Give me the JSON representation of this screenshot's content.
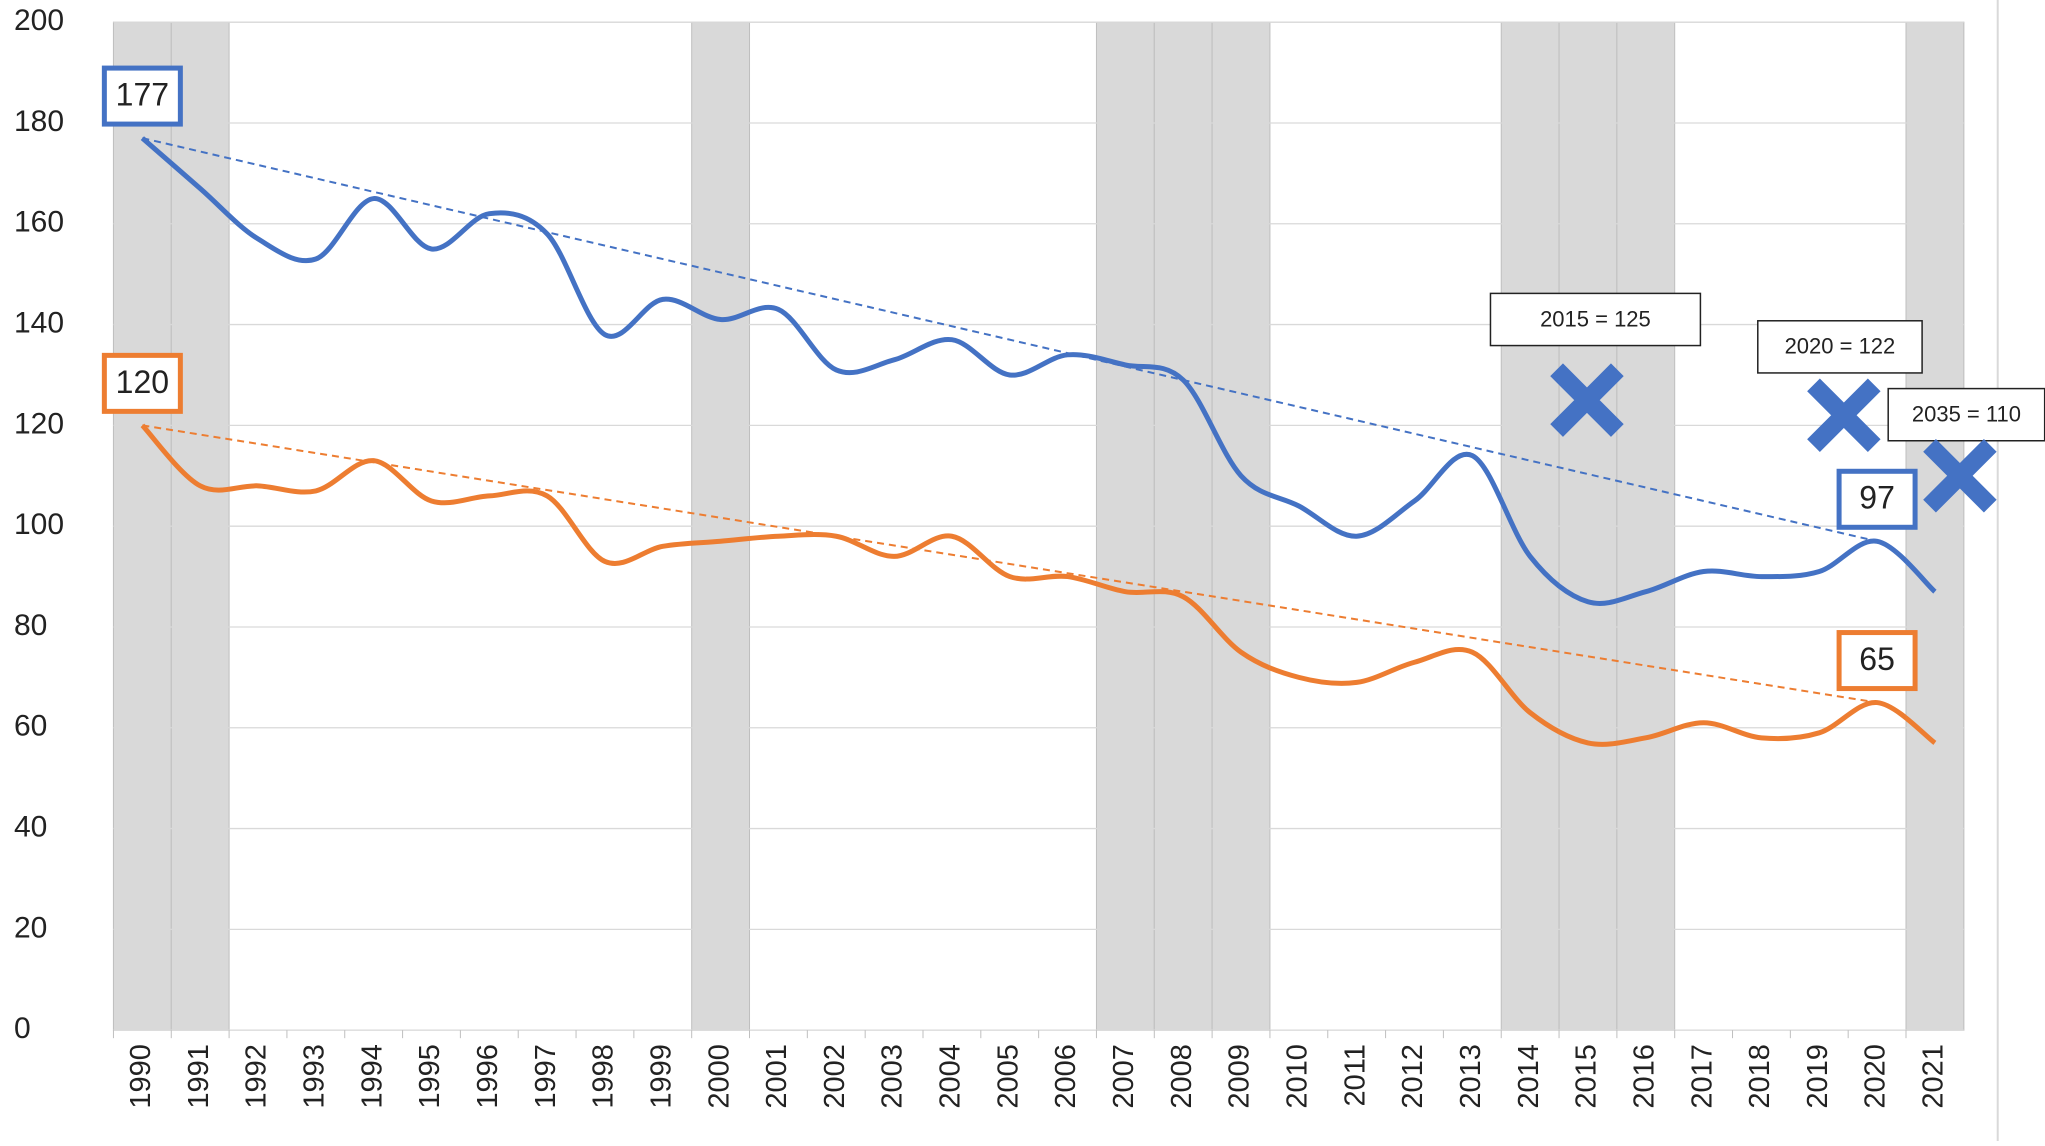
{
  "chart_data": {
    "type": "line",
    "categories": [
      "1990",
      "1991",
      "1992",
      "1993",
      "1994",
      "1995",
      "1996",
      "1997",
      "1998",
      "1999",
      "2000",
      "2001",
      "2002",
      "2003",
      "2004",
      "2005",
      "2006",
      "2007",
      "2008",
      "2009",
      "2010",
      "2011",
      "2012",
      "2013",
      "2014",
      "2015",
      "2016",
      "2017",
      "2018",
      "2019",
      "2020",
      "2021"
    ],
    "series": [
      {
        "color": "#4472c4",
        "values": [
          177,
          167,
          157,
          153,
          165,
          155,
          162,
          158,
          138,
          145,
          141,
          143,
          131,
          133,
          137,
          130,
          134,
          132,
          129,
          110,
          104,
          98,
          105,
          114,
          94,
          85,
          87,
          91,
          90,
          91,
          97,
          87
        ],
        "value_labels": [
          "177",
          null,
          null,
          null,
          null,
          null,
          null,
          null,
          null,
          null,
          null,
          null,
          null,
          null,
          null,
          null,
          null,
          null,
          null,
          null,
          null,
          null,
          null,
          null,
          null,
          null,
          null,
          null,
          null,
          null,
          "97",
          null
        ]
      },
      {
        "color": "#ed7d31",
        "values": [
          120,
          108,
          108,
          107,
          113,
          105,
          106,
          106,
          93,
          96,
          97,
          98,
          98,
          94,
          98,
          90,
          90,
          87,
          86,
          75,
          70,
          69,
          73,
          75,
          63,
          57,
          58,
          61,
          58,
          59,
          65,
          57
        ],
        "value_labels": [
          "120",
          null,
          null,
          null,
          null,
          null,
          null,
          null,
          null,
          null,
          null,
          null,
          null,
          null,
          null,
          null,
          null,
          null,
          null,
          null,
          null,
          null,
          null,
          null,
          null,
          null,
          null,
          null,
          null,
          null,
          "65",
          null
        ]
      }
    ],
    "shaded": [
      0,
      1,
      10,
      17,
      18,
      19,
      24,
      25,
      26,
      31
    ],
    "trendline": true,
    "annotations": [
      {
        "label": "2015 = 125",
        "value": 125,
        "color": "#4472c4"
      },
      {
        "label": "2020 = 122",
        "value": 122,
        "color": "#4472c4"
      },
      {
        "label": "2035 = 110",
        "value": 110,
        "color": "#4472c4"
      }
    ],
    "ylim": [
      0,
      200
    ],
    "yticks": [
      0,
      20,
      40,
      60,
      80,
      100,
      120,
      140,
      160,
      180,
      200
    ],
    "grid": true
  }
}
